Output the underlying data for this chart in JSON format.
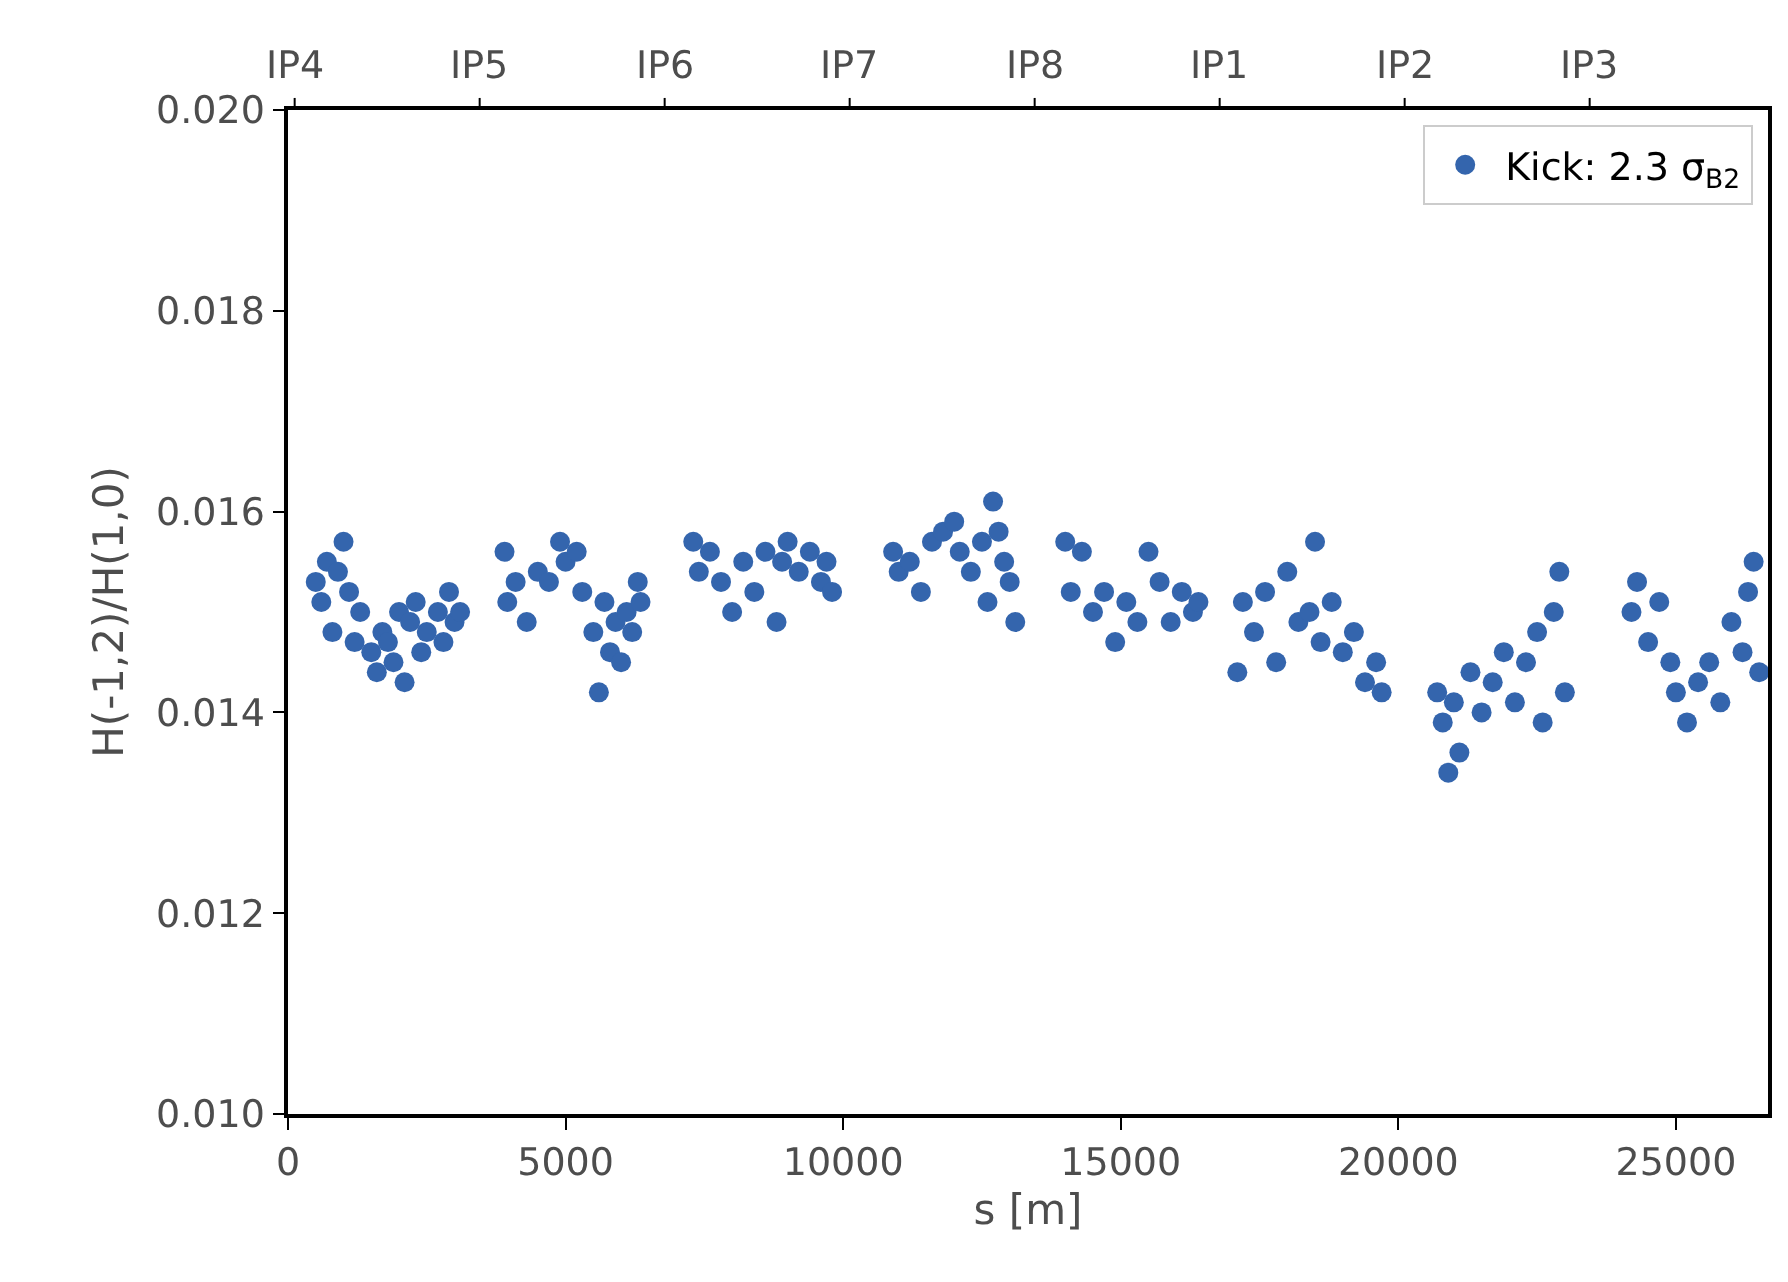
{
  "chart_data": {
    "type": "scatter",
    "xlabel": "s [m]",
    "ylabel": "H(-1,2)/H(1,0)",
    "xlim": [
      0,
      26659
    ],
    "xticks": [
      0,
      5000,
      10000,
      15000,
      20000,
      25000
    ],
    "ylim": [
      0.01,
      0.02
    ],
    "yticks": [
      {
        "value": 0.01,
        "label": "0.010"
      },
      {
        "value": 0.012,
        "label": "0.012"
      },
      {
        "value": 0.014,
        "label": "0.014"
      },
      {
        "value": 0.016,
        "label": "0.016"
      },
      {
        "value": 0.018,
        "label": "0.018"
      },
      {
        "value": 0.02,
        "label": "0.020"
      }
    ],
    "annotations": [
      "IP4",
      "IP5",
      "IP6",
      "IP7",
      "IP8",
      "IP1",
      "IP2",
      "IP3"
    ],
    "grid": false,
    "legend": "top right",
    "marker": "circle",
    "series": [
      {
        "name": "Kick: 2.3 σ$_{B2}$",
        "color": "#3465ad",
        "x": [
          500,
          600,
          700,
          800,
          900,
          1000,
          1100,
          1200,
          1300,
          1500,
          1600,
          1700,
          1800,
          1900,
          2000,
          2100,
          2200,
          2300,
          2400,
          2500,
          2700,
          2800,
          2900,
          3000,
          3100,
          3900,
          3950,
          4100,
          4300,
          4500,
          4700,
          4900,
          5000,
          5200,
          5300,
          5500,
          5600,
          5700,
          5800,
          5900,
          6000,
          6100,
          6200,
          6300,
          6350,
          7300,
          7400,
          7600,
          7800,
          8000,
          8200,
          8400,
          8600,
          8800,
          8900,
          9000,
          9200,
          9400,
          9600,
          9700,
          9800,
          10900,
          11000,
          11200,
          11400,
          11600,
          11800,
          12000,
          12100,
          12300,
          12500,
          12600,
          12700,
          12800,
          12900,
          13000,
          13100,
          14000,
          14100,
          14300,
          14500,
          14700,
          14900,
          15100,
          15300,
          15500,
          15700,
          15900,
          16100,
          16300,
          16400,
          17100,
          17200,
          17400,
          17600,
          17800,
          18000,
          18200,
          18400,
          18500,
          18600,
          18800,
          19000,
          19200,
          19400,
          19600,
          19700,
          20700,
          20800,
          20900,
          21000,
          21100,
          21300,
          21500,
          21700,
          21900,
          22100,
          22300,
          22500,
          22600,
          22800,
          22900,
          23000,
          24200,
          24300,
          24500,
          24700,
          24900,
          25000,
          25200,
          25400,
          25600,
          25800,
          26000,
          26200,
          26300,
          26400,
          26500
        ],
        "values": [
          0.0153,
          0.0151,
          0.0155,
          0.0148,
          0.0154,
          0.0157,
          0.0152,
          0.0147,
          0.015,
          0.0146,
          0.0144,
          0.0148,
          0.0147,
          0.0145,
          0.015,
          0.0143,
          0.0149,
          0.0151,
          0.0146,
          0.0148,
          0.015,
          0.0147,
          0.0152,
          0.0149,
          0.015,
          0.0156,
          0.0151,
          0.0153,
          0.0149,
          0.0154,
          0.0153,
          0.0157,
          0.0155,
          0.0156,
          0.0152,
          0.0148,
          0.0142,
          0.0151,
          0.0146,
          0.0149,
          0.0145,
          0.015,
          0.0148,
          0.0153,
          0.0151,
          0.0157,
          0.0154,
          0.0156,
          0.0153,
          0.015,
          0.0155,
          0.0152,
          0.0156,
          0.0149,
          0.0155,
          0.0157,
          0.0154,
          0.0156,
          0.0153,
          0.0155,
          0.0152,
          0.0156,
          0.0154,
          0.0155,
          0.0152,
          0.0157,
          0.0158,
          0.0159,
          0.0156,
          0.0154,
          0.0157,
          0.0151,
          0.0161,
          0.0158,
          0.0155,
          0.0153,
          0.0149,
          0.0157,
          0.0152,
          0.0156,
          0.015,
          0.0152,
          0.0147,
          0.0151,
          0.0149,
          0.0156,
          0.0153,
          0.0149,
          0.0152,
          0.015,
          0.0151,
          0.0144,
          0.0151,
          0.0148,
          0.0152,
          0.0145,
          0.0154,
          0.0149,
          0.015,
          0.0157,
          0.0147,
          0.0151,
          0.0146,
          0.0148,
          0.0143,
          0.0145,
          0.0142,
          0.0142,
          0.0139,
          0.0134,
          0.0141,
          0.0136,
          0.0144,
          0.014,
          0.0143,
          0.0146,
          0.0141,
          0.0145,
          0.0148,
          0.0139,
          0.015,
          0.0154,
          0.0142,
          0.015,
          0.0153,
          0.0147,
          0.0151,
          0.0145,
          0.0142,
          0.0139,
          0.0143,
          0.0145,
          0.0141,
          0.0149,
          0.0146,
          0.0152,
          0.0155,
          0.0144
        ]
      }
    ]
  }
}
